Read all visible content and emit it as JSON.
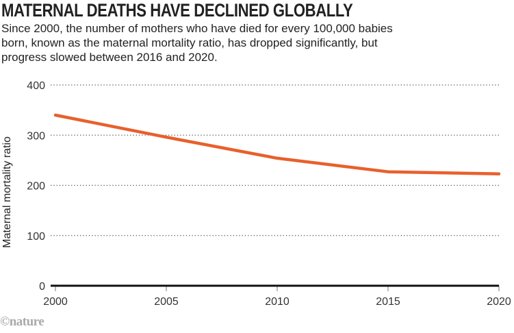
{
  "header": {
    "title": "MATERNAL DEATHS HAVE DECLINED GLOBALLY",
    "subtitle": "Since 2000, the number of mothers who have died for every 100,000 babies born, known as the maternal mortality ratio, has dropped significantly, but progress slowed between 2016 and 2020."
  },
  "credit": "©nature",
  "colors": {
    "line": "#e8602c",
    "axis": "#111111",
    "grid": "#555555"
  },
  "chart_data": {
    "type": "line",
    "title": "MATERNAL DEATHS HAVE DECLINED GLOBALLY",
    "xlabel": "",
    "ylabel": "Maternal mortality ratio",
    "xlim": [
      2000,
      2020
    ],
    "ylim": [
      0,
      400
    ],
    "xticks": [
      2000,
      2005,
      2010,
      2015,
      2020
    ],
    "yticks": [
      0,
      100,
      200,
      300,
      400
    ],
    "grid": "horizontal-dotted",
    "series": [
      {
        "name": "Maternal mortality ratio",
        "x": [
          2000,
          2005,
          2010,
          2015,
          2020
        ],
        "values": [
          340,
          296,
          254,
          227,
          223
        ]
      }
    ]
  }
}
